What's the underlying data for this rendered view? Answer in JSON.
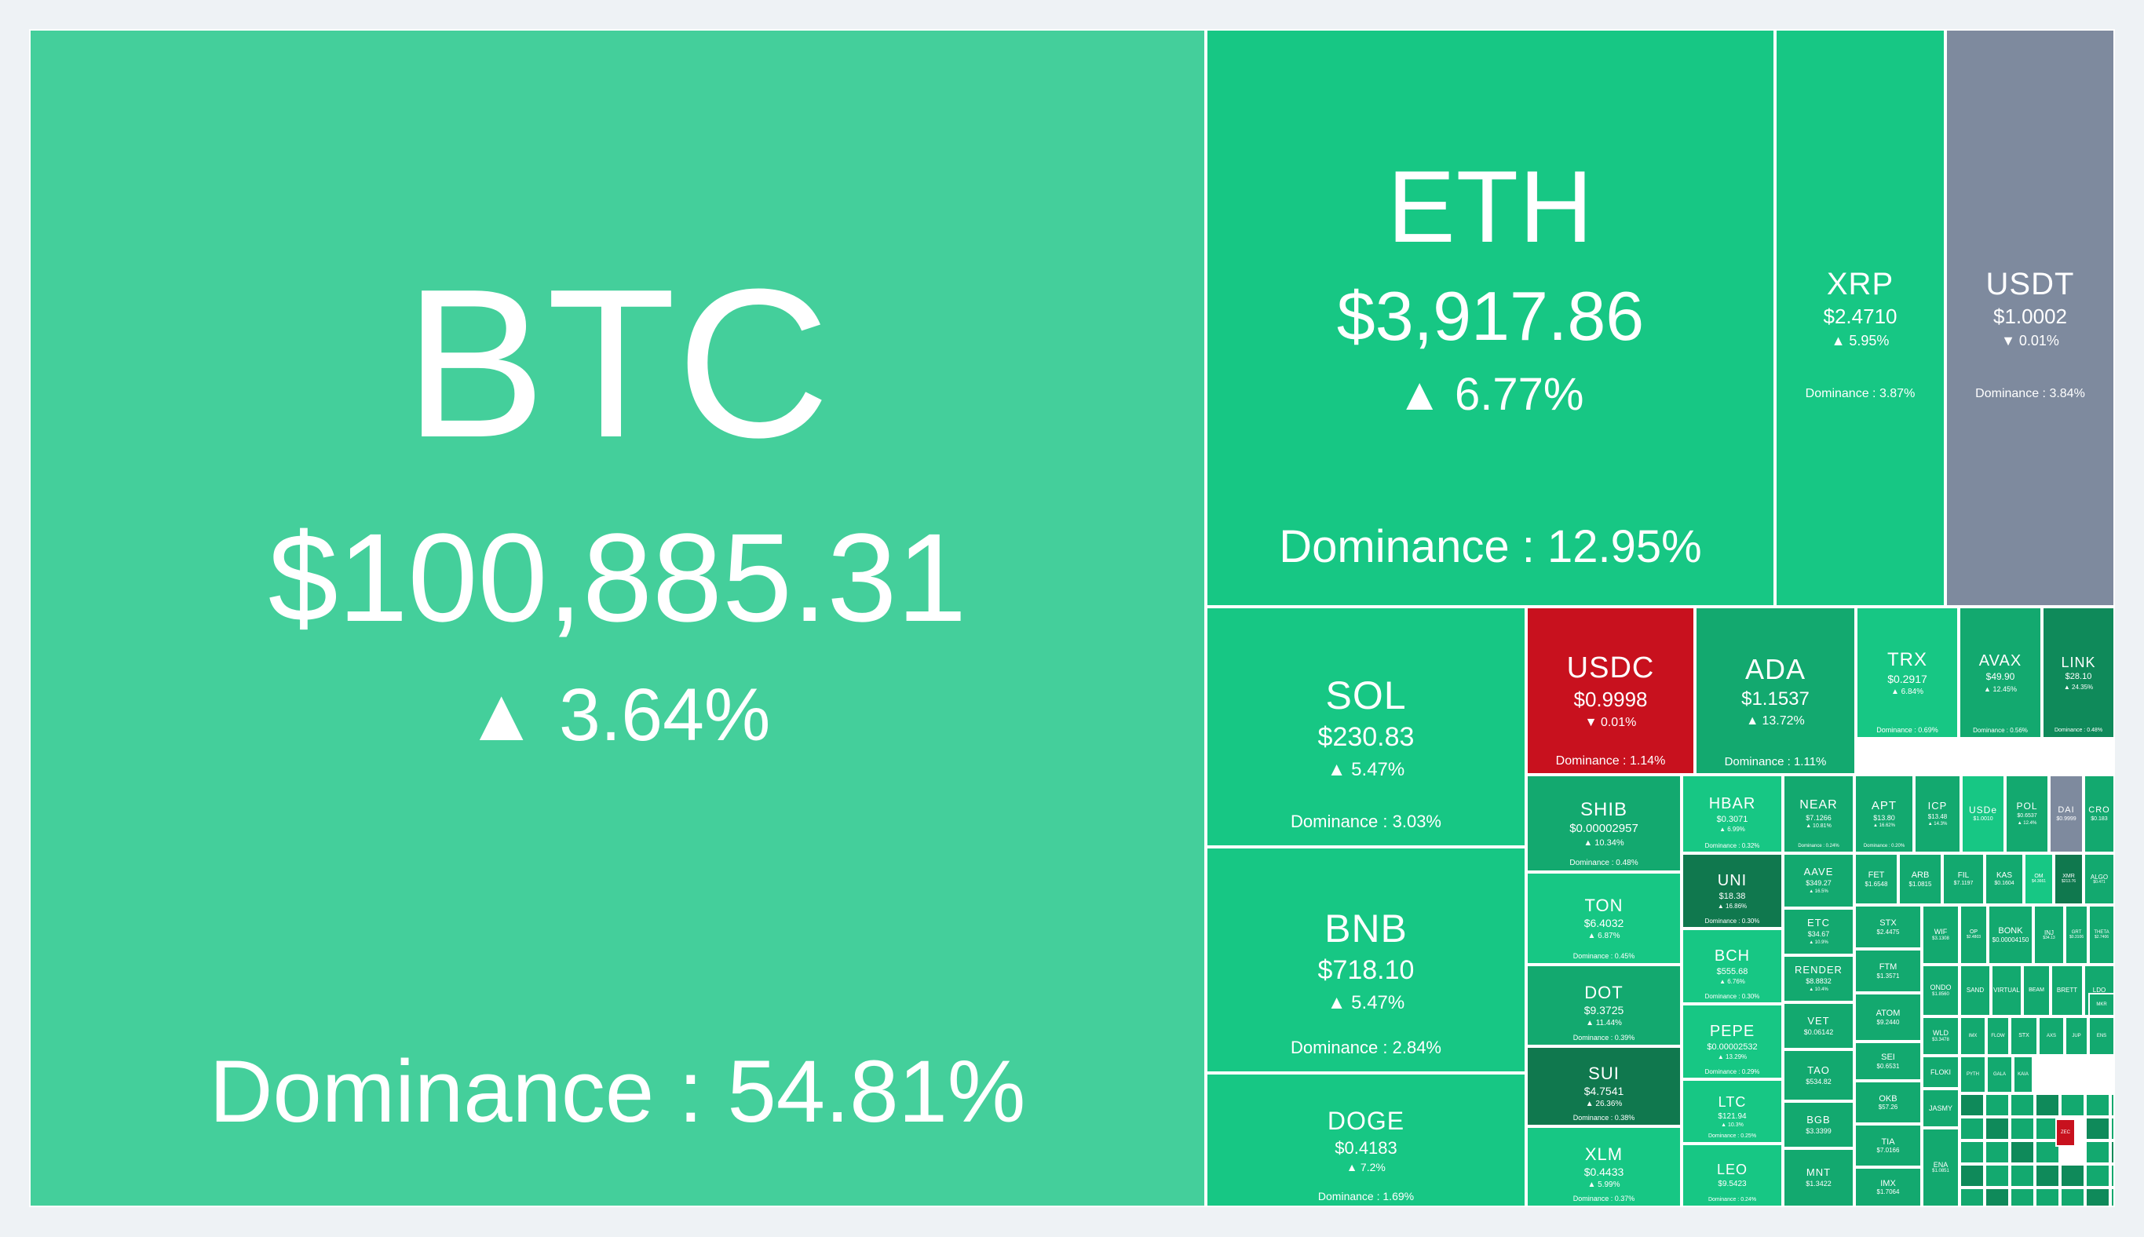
{
  "colors": {
    "btc_green": "#44cf9b",
    "bright_green": "#17c784",
    "medium_green": "#13a96f",
    "dark_green": "#0f8a5a",
    "darker_green": "#10784e",
    "gray": "#7e8a9e",
    "red": "#c8111e"
  },
  "change_up_icon": "triangle-up",
  "change_down_icon": "triangle-down",
  "big_tiles": [
    {
      "symbol": "BTC",
      "price": "$100,885.31",
      "change": "▲  3.64%",
      "dominance": "Dominance : 54.81%"
    },
    {
      "symbol": "ETH",
      "price": "$3,917.86",
      "change": "▲  6.77%",
      "dominance": "Dominance : 12.95%"
    },
    {
      "symbol": "XRP",
      "price": "$2.4710",
      "change": "▲ 5.95%",
      "dominance": "Dominance : 3.87%"
    },
    {
      "symbol": "USDT",
      "price": "$1.0002",
      "change": "▼ 0.01%",
      "dominance": "Dominance : 3.84%"
    },
    {
      "symbol": "SOL",
      "price": "$230.83",
      "change": "▲ 5.47%",
      "dominance": "Dominance : 3.03%"
    },
    {
      "symbol": "BNB",
      "price": "$718.10",
      "change": "▲ 5.47%",
      "dominance": "Dominance : 2.84%"
    },
    {
      "symbol": "DOGE",
      "price": "$0.4183",
      "change": "▲ 7.2%",
      "dominance": "Dominance : 1.69%"
    },
    {
      "symbol": "USDC",
      "price": "$0.9998",
      "change": "▼ 0.01%",
      "dominance": "Dominance : 1.14%"
    },
    {
      "symbol": "ADA",
      "price": "$1.1537",
      "change": "▲ 13.72%",
      "dominance": "Dominance : 1.11%"
    },
    {
      "symbol": "TRX",
      "price": "$0.2917",
      "change": "▲ 6.84%",
      "dominance": "Dominance : 0.69%"
    },
    {
      "symbol": "AVAX",
      "price": "$49.90",
      "change": "▲ 12.45%",
      "dominance": "Dominance : 0.56%"
    },
    {
      "symbol": "LINK",
      "price": "$28.10",
      "change": "▲ 24.35%",
      "dominance": "Dominance : 0.48%"
    },
    {
      "symbol": "SHIB",
      "price": "$0.00002957",
      "change": "▲ 10.34%",
      "dominance": "Dominance : 0.48%"
    },
    {
      "symbol": "TON",
      "price": "$6.4032",
      "change": "▲ 6.87%",
      "dominance": "Dominance : 0.45%"
    },
    {
      "symbol": "DOT",
      "price": "$9.3725",
      "change": "▲ 11.44%",
      "dominance": "Dominance : 0.39%"
    },
    {
      "symbol": "SUI",
      "price": "$4.7541",
      "change": "▲ 26.36%",
      "dominance": "Dominance : 0.38%"
    },
    {
      "symbol": "XLM",
      "price": "$0.4433",
      "change": "▲ 5.99%",
      "dominance": "Dominance : 0.37%"
    },
    {
      "symbol": "HBAR",
      "price": "$0.3071",
      "change": "▲ 6.99%",
      "dominance": "Dominance : 0.32%"
    },
    {
      "symbol": "UNI",
      "price": "$18.38",
      "change": "▲ 16.86%",
      "dominance": "Dominance : 0.30%"
    },
    {
      "symbol": "BCH",
      "price": "$555.68",
      "change": "▲ 6.76%",
      "dominance": "Dominance : 0.30%"
    },
    {
      "symbol": "PEPE",
      "price": "$0.00002532",
      "change": "▲ 13.29%",
      "dominance": "Dominance : 0.29%"
    },
    {
      "symbol": "LTC",
      "price": "$121.94",
      "change": "▲ 10.3%",
      "dominance": "Dominance : 0.25%"
    },
    {
      "symbol": "LEO",
      "price": "$9.5423",
      "change": "",
      "dominance": "Dominance : 0.24%"
    },
    {
      "symbol": "NEAR",
      "price": "$7.1266",
      "change": "▲ 10.81%",
      "dominance": "Dominance : 0.24%"
    },
    {
      "symbol": "APT",
      "price": "$13.80",
      "change": "▲ 16.62%",
      "dominance": "Dominance : 0.20%"
    },
    {
      "symbol": "ICP",
      "price": "$13.48",
      "change": "▲ 14.3%",
      "dominance": ""
    },
    {
      "symbol": "USDe",
      "price": "$1.0010",
      "change": "",
      "dominance": ""
    },
    {
      "symbol": "POL",
      "price": "$0.6537",
      "change": "▲ 12.4%",
      "dominance": ""
    },
    {
      "symbol": "DAI",
      "price": "$0.9999",
      "change": "",
      "dominance": ""
    },
    {
      "symbol": "CRO",
      "price": "$0.183",
      "change": "",
      "dominance": ""
    },
    {
      "symbol": "AAVE",
      "price": "$349.27",
      "change": "▲ 16.5%",
      "dominance": ""
    },
    {
      "symbol": "ETC",
      "price": "$34.67",
      "change": "▲ 10.9%",
      "dominance": ""
    },
    {
      "symbol": "RENDER",
      "price": "$8.8832",
      "change": "▲ 10.4%",
      "dominance": ""
    },
    {
      "symbol": "VET",
      "price": "$0.06142",
      "change": "",
      "dominance": ""
    },
    {
      "symbol": "TAO",
      "price": "$534.82",
      "change": "",
      "dominance": ""
    },
    {
      "symbol": "BGB",
      "price": "$3.3399",
      "change": "",
      "dominance": ""
    },
    {
      "symbol": "MNT",
      "price": "$1.3422",
      "change": "",
      "dominance": ""
    }
  ],
  "mini_tiles": [
    {
      "symbol": "FET",
      "price": "$1.6548"
    },
    {
      "symbol": "ARB",
      "price": "$1.0815"
    },
    {
      "symbol": "FIL",
      "price": "$7.1197"
    },
    {
      "symbol": "KAS",
      "price": "$0.1604"
    },
    {
      "symbol": "OM",
      "price": "$4.3661"
    },
    {
      "symbol": "XMR",
      "price": "$213.76"
    },
    {
      "symbol": "ALGO",
      "price": "$0.471"
    },
    {
      "symbol": "STX",
      "price": "$2.4475"
    },
    {
      "symbol": "WIF",
      "price": "$3.1308"
    },
    {
      "symbol": "OP",
      "price": "$2.4803"
    },
    {
      "symbol": "BONK",
      "price": "$0.00004150"
    },
    {
      "symbol": "INJ",
      "price": "$34.13"
    },
    {
      "symbol": "GRT",
      "price": "$0.3106"
    },
    {
      "symbol": "THETA",
      "price": "$2.7406"
    },
    {
      "symbol": "FTM",
      "price": "$1.3571"
    },
    {
      "symbol": "ONDO",
      "price": "$1.8560"
    },
    {
      "symbol": "SAND",
      "price": ""
    },
    {
      "symbol": "VIRTUAL",
      "price": ""
    },
    {
      "symbol": "BEAM",
      "price": ""
    },
    {
      "symbol": "BRETT",
      "price": ""
    },
    {
      "symbol": "LDO",
      "price": ""
    },
    {
      "symbol": "MKR",
      "price": ""
    },
    {
      "symbol": "ATOM",
      "price": "$9.2440"
    },
    {
      "symbol": "SEI",
      "price": "$0.6531"
    },
    {
      "symbol": "WLD",
      "price": "$3.3478"
    },
    {
      "symbol": "IMX",
      "price": ""
    },
    {
      "symbol": "FLOW",
      "price": ""
    },
    {
      "symbol": "STX",
      "price": ""
    },
    {
      "symbol": "AXS",
      "price": ""
    },
    {
      "symbol": "JUP",
      "price": ""
    },
    {
      "symbol": "ENS",
      "price": ""
    },
    {
      "symbol": "OKB",
      "price": "$57.26"
    },
    {
      "symbol": "FLOKI",
      "price": ""
    },
    {
      "symbol": "TIA",
      "price": "$7.0166"
    },
    {
      "symbol": "IMX",
      "price": "$1.7064"
    },
    {
      "symbol": "JASMY",
      "price": ""
    },
    {
      "symbol": "PYTH",
      "price": ""
    },
    {
      "symbol": "ENA",
      "price": "$1.0851"
    },
    {
      "symbol": "GALA",
      "price": ""
    },
    {
      "symbol": "KAIA",
      "price": ""
    },
    {
      "symbol": "ZEC",
      "price": ""
    }
  ]
}
